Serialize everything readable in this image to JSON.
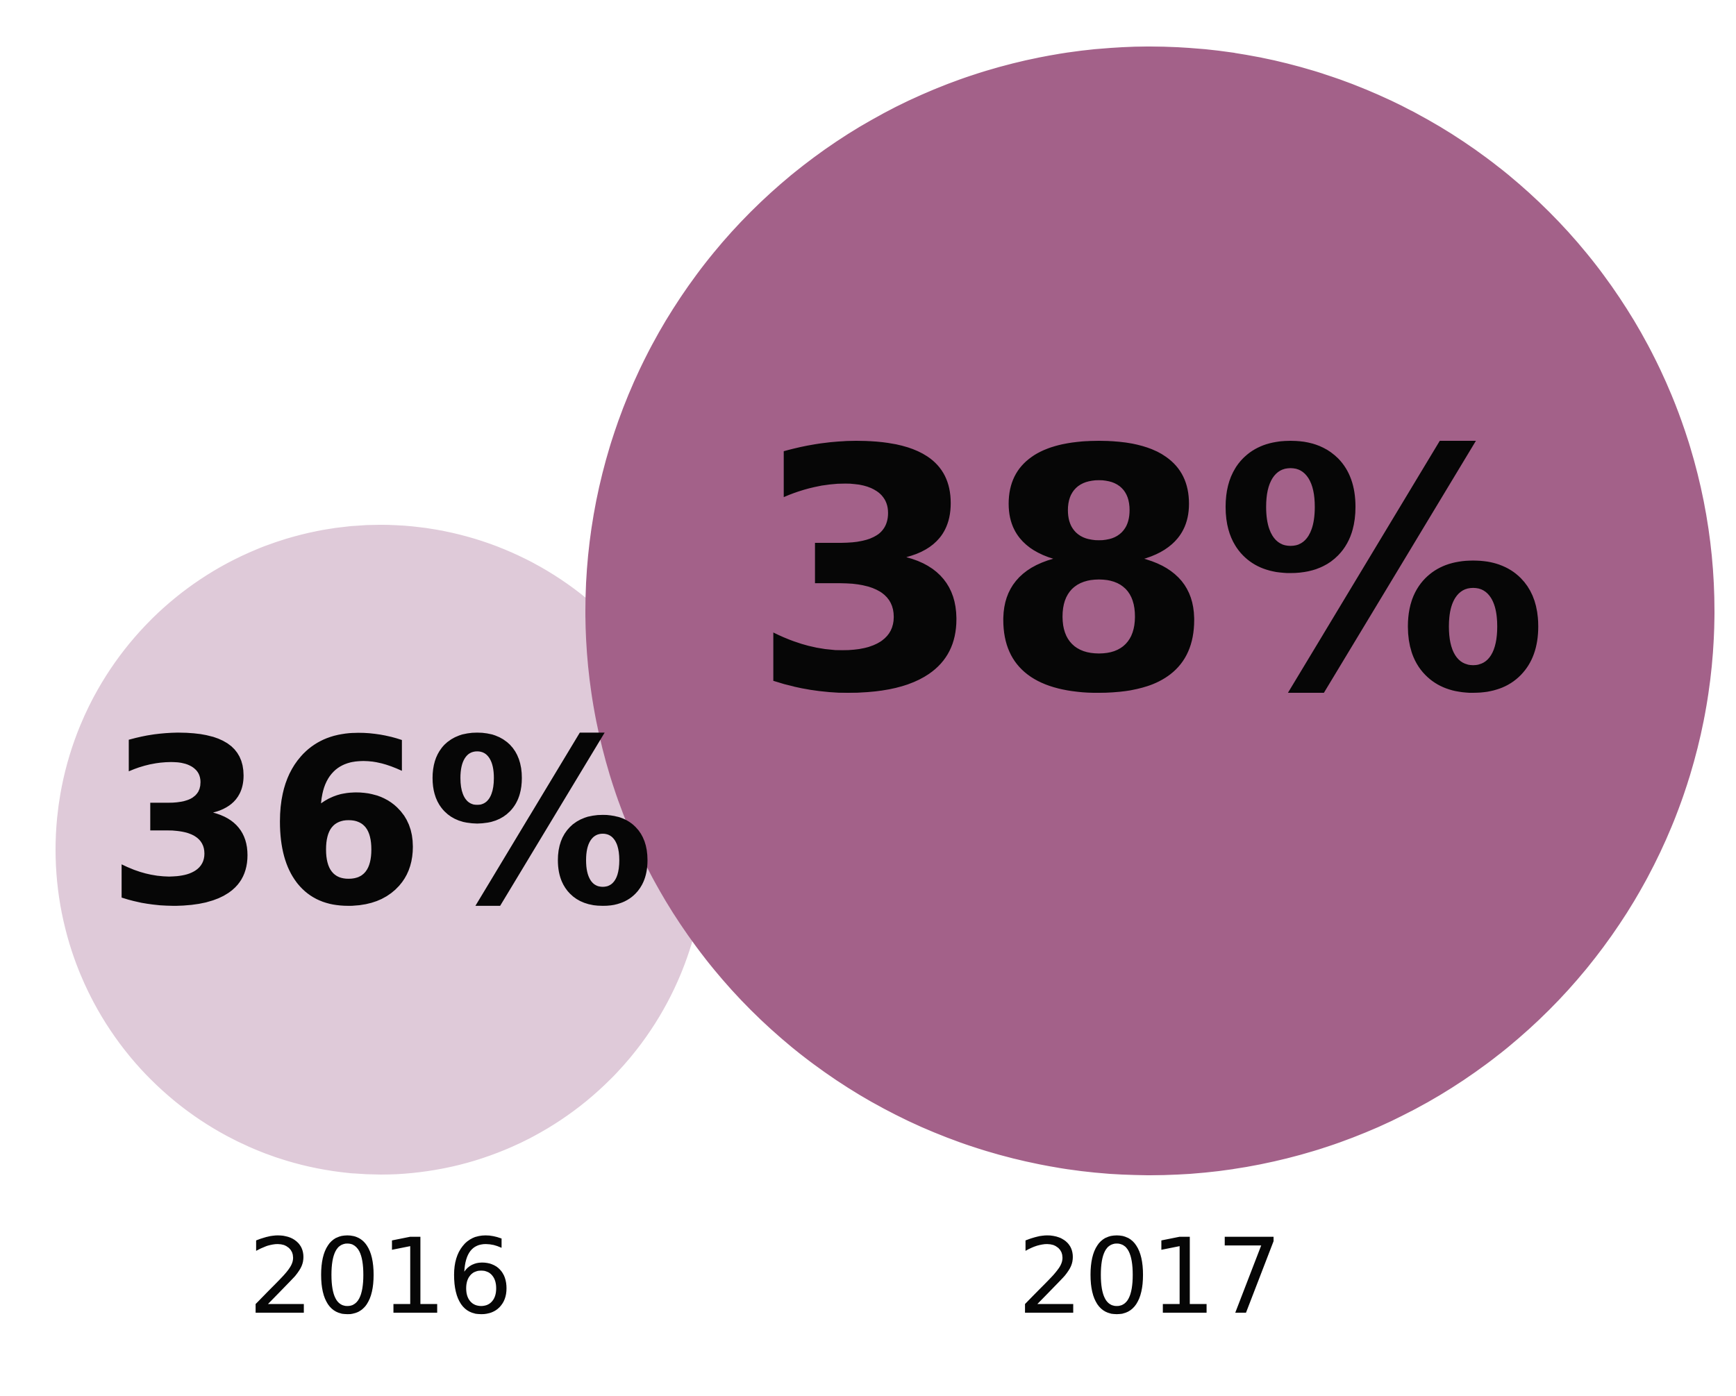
{
  "chart_data": {
    "type": "bubble",
    "categories": [
      "2016",
      "2017"
    ],
    "values": [
      36,
      38
    ],
    "value_labels": [
      "36%",
      "38%"
    ],
    "colors": [
      "#dfcad9",
      "#a36189"
    ]
  }
}
